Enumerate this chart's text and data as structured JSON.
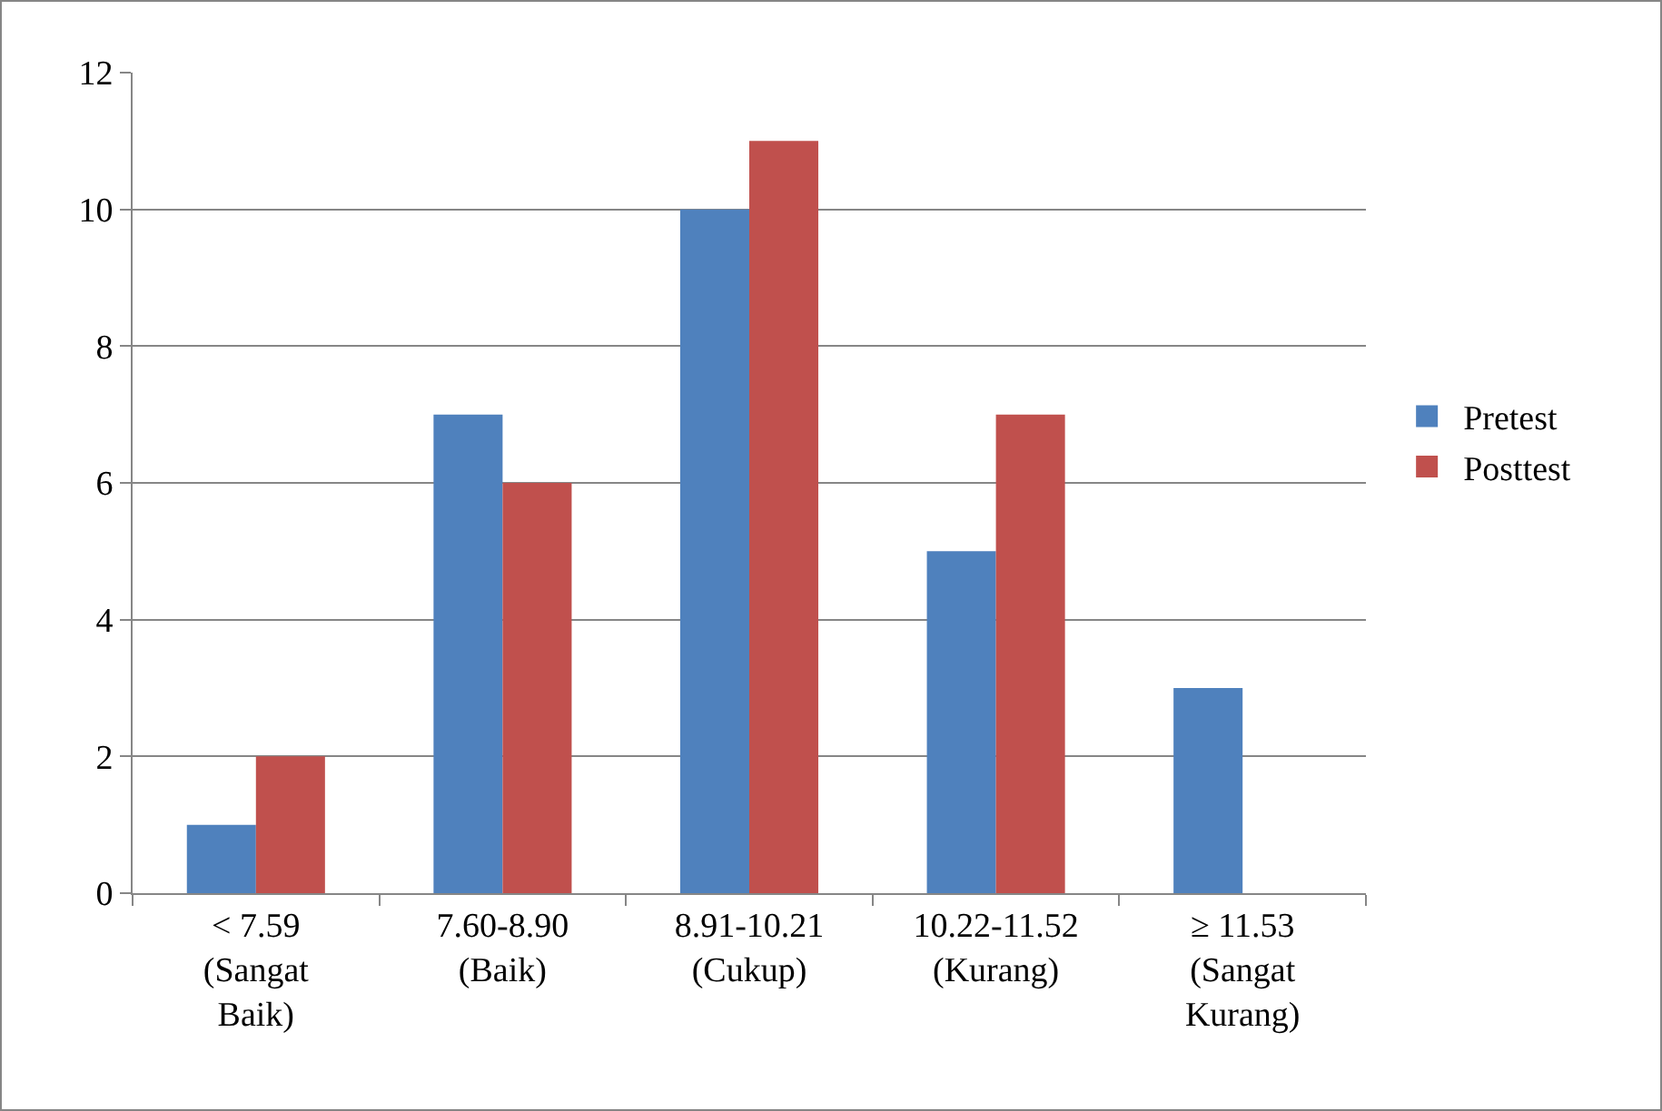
{
  "chart_data": {
    "type": "bar",
    "categories": [
      "< 7.59\n(Sangat\nBaik)",
      "7.60-8.90\n(Baik)",
      "8.91-10.21\n(Cukup)",
      "10.22-11.52\n(Kurang)",
      "≥ 11.53\n(Sangat\nKurang)"
    ],
    "series": [
      {
        "name": "Pretest",
        "color": "#4f81bd",
        "values": [
          1,
          7,
          10,
          5,
          3
        ]
      },
      {
        "name": "Posttest",
        "color": "#c0504d",
        "values": [
          2,
          6,
          11,
          7,
          0
        ]
      }
    ],
    "ylim": [
      0,
      12
    ],
    "yticks": [
      0,
      2,
      4,
      6,
      8,
      10,
      12
    ],
    "grid": "y",
    "legend": "right"
  }
}
